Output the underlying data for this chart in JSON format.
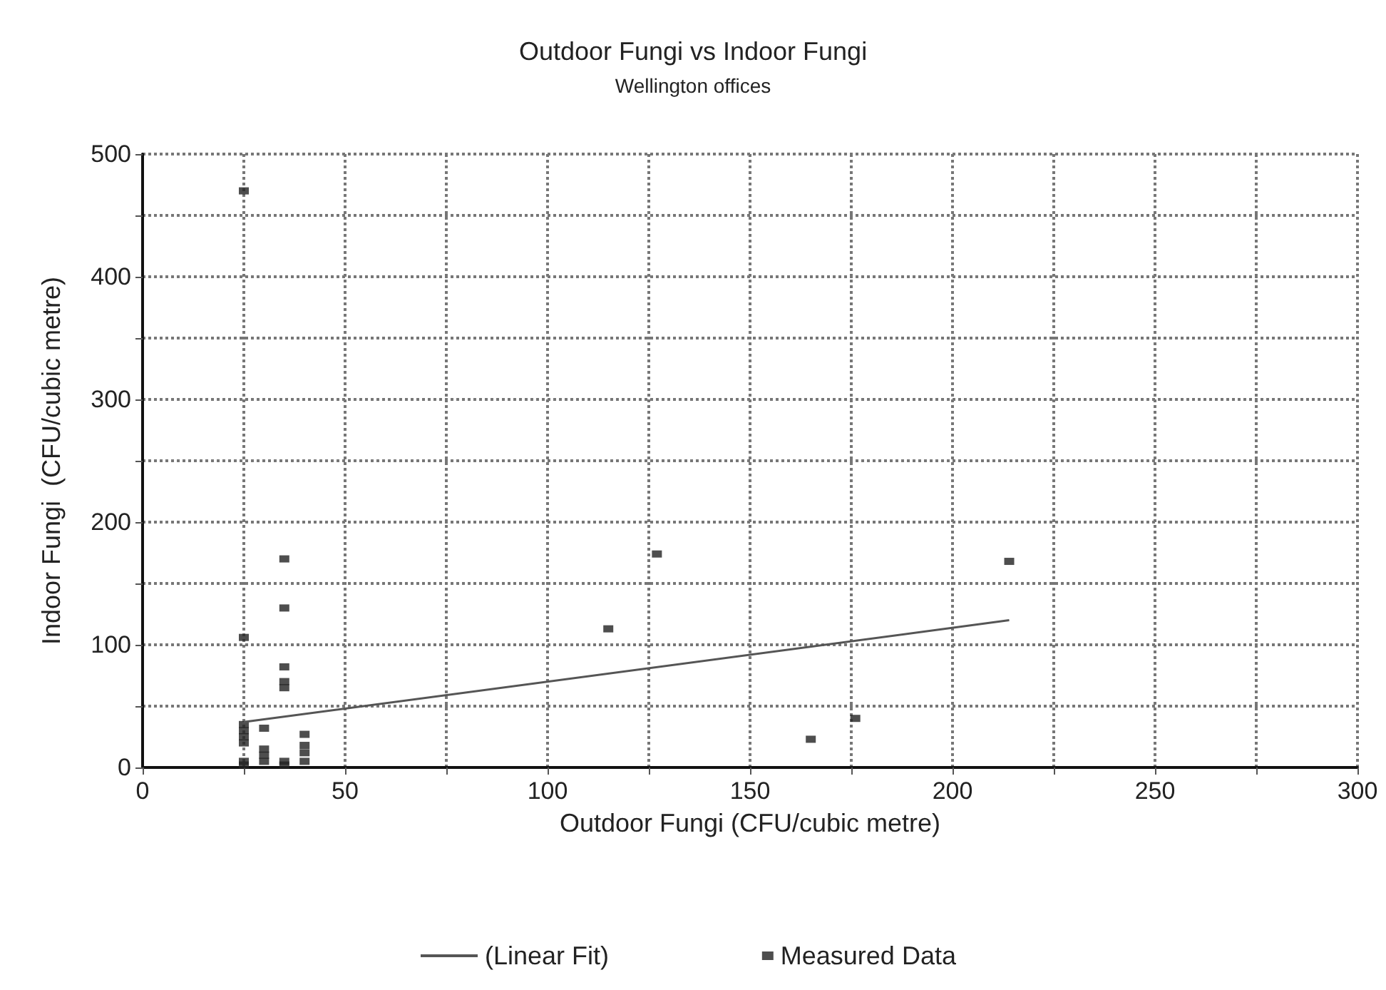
{
  "chart_data": {
    "type": "scatter",
    "title": "Outdoor Fungi vs Indoor Fungi",
    "subtitle": "Wellington offices",
    "xlabel": "Outdoor Fungi (CFU/cubic metre)",
    "ylabel": "Indoor Fungi  (CFU/cubic metre)",
    "xlim": [
      0,
      300
    ],
    "ylim": [
      0,
      500
    ],
    "xticks": [
      0,
      {
        "value": 25,
        "label": null
      },
      50,
      {
        "value": 75,
        "label": null
      },
      100,
      {
        "value": 125,
        "label": null
      },
      150,
      {
        "value": 175,
        "label": null
      },
      200,
      {
        "value": 225,
        "label": null
      },
      250,
      {
        "value": 275,
        "label": null
      },
      300
    ],
    "yticks": [
      0,
      {
        "value": 50,
        "label": null
      },
      100,
      {
        "value": 150,
        "label": null
      },
      200,
      {
        "value": 250,
        "label": null
      },
      300,
      {
        "value": 350,
        "label": null
      },
      400,
      {
        "value": 450,
        "label": null
      },
      500
    ],
    "grid": true,
    "legend": "bottom",
    "series": [
      {
        "name": "(Linear Fit)",
        "type": "line",
        "color": "#555555",
        "marker": "none",
        "line_style": "solid",
        "x": [
          25,
          214
        ],
        "values": [
          37,
          120
        ]
      },
      {
        "name": "Measured Data",
        "color": "#222222",
        "marker": "square",
        "x": [
          25,
          25,
          25,
          25,
          25,
          25,
          25,
          25,
          30,
          30,
          30,
          30,
          35,
          35,
          35,
          35,
          35,
          35,
          35,
          40,
          40,
          40,
          40,
          115,
          127,
          165,
          176,
          214
        ],
        "values": [
          470,
          106,
          35,
          30,
          25,
          20,
          5,
          2,
          32,
          15,
          10,
          5,
          170,
          130,
          82,
          70,
          65,
          5,
          2,
          27,
          18,
          12,
          5,
          113,
          174,
          23,
          40,
          168
        ]
      }
    ]
  }
}
